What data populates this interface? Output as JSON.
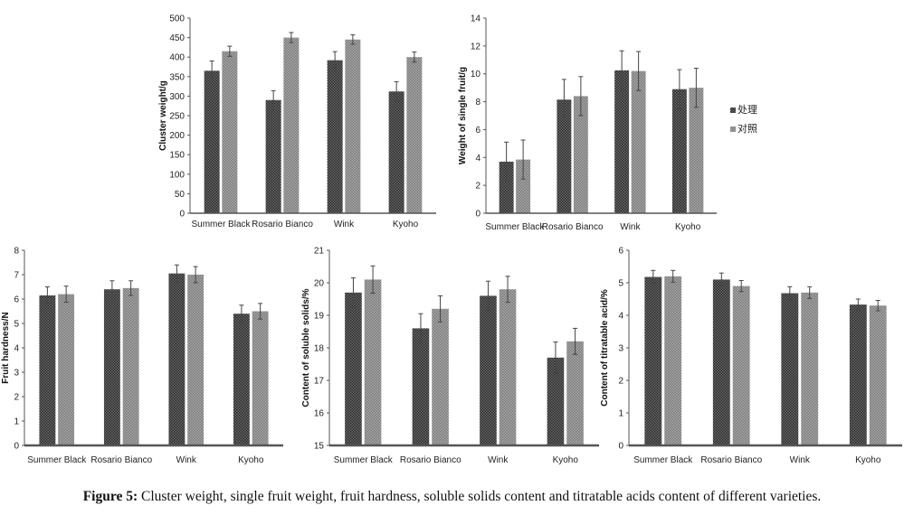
{
  "caption": {
    "label": "Figure 5:",
    "text": " Cluster weight, single fruit weight, fruit hardness, soluble solids content and titratable acids content of different varieties."
  },
  "legend": [
    "处理",
    "对照"
  ],
  "colors": {
    "treatment_pattern": "#3a3a3a",
    "control_pattern": "#8a8a8a",
    "axis": "#555555"
  },
  "chart_data": [
    {
      "type": "bar",
      "ylabel": "Cluster weight/g",
      "categories": [
        "Summer Black",
        "Rosario Bianco",
        "Wink",
        "Kyoho"
      ],
      "ylim": [
        0,
        500
      ],
      "yticks": [
        0,
        50,
        100,
        150,
        200,
        250,
        300,
        350,
        400,
        450,
        500
      ],
      "series": [
        {
          "name": "处理",
          "values": [
            365,
            290,
            392,
            312
          ],
          "errors": [
            25,
            24,
            22,
            25
          ]
        },
        {
          "name": "对照",
          "values": [
            415,
            450,
            445,
            400
          ],
          "errors": [
            13,
            13,
            12,
            13
          ]
        }
      ]
    },
    {
      "type": "bar",
      "ylabel": "Weight of single fruit/g",
      "categories": [
        "Summer Black",
        "Rosario Bianco",
        "Wink",
        "Kyoho"
      ],
      "ylim": [
        0,
        14
      ],
      "yticks": [
        0,
        2,
        4,
        6,
        8,
        10,
        12,
        14
      ],
      "legend_position": "right",
      "series": [
        {
          "name": "处理",
          "values": [
            3.7,
            8.15,
            10.25,
            8.9
          ],
          "errors": [
            1.4,
            1.45,
            1.4,
            1.4
          ]
        },
        {
          "name": "对照",
          "values": [
            3.85,
            8.4,
            10.2,
            9.0
          ],
          "errors": [
            1.4,
            1.4,
            1.4,
            1.4
          ]
        }
      ]
    },
    {
      "type": "bar",
      "ylabel": "Fruit hardness/N",
      "categories": [
        "Summer Black",
        "Rosario Bianco",
        "Wink",
        "Kyoho"
      ],
      "ylim": [
        0,
        8
      ],
      "yticks": [
        0,
        1,
        2,
        3,
        4,
        5,
        6,
        7,
        8
      ],
      "series": [
        {
          "name": "处理",
          "values": [
            6.15,
            6.4,
            7.05,
            5.4
          ],
          "errors": [
            0.35,
            0.35,
            0.35,
            0.35
          ]
        },
        {
          "name": "对照",
          "values": [
            6.2,
            6.45,
            7.0,
            5.5
          ],
          "errors": [
            0.33,
            0.3,
            0.33,
            0.32
          ]
        }
      ]
    },
    {
      "type": "bar",
      "ylabel": "Content of soluble solids/%",
      "categories": [
        "Summer Black",
        "Rosario Bianco",
        "Wink",
        "Kyoho"
      ],
      "ylim": [
        15,
        21
      ],
      "yticks": [
        15,
        16,
        17,
        18,
        19,
        20,
        21
      ],
      "series": [
        {
          "name": "处理",
          "values": [
            19.7,
            18.6,
            19.6,
            17.7
          ],
          "errors": [
            0.45,
            0.45,
            0.45,
            0.48
          ]
        },
        {
          "name": "对照",
          "values": [
            20.1,
            19.2,
            19.8,
            18.2
          ],
          "errors": [
            0.42,
            0.4,
            0.4,
            0.4
          ]
        }
      ]
    },
    {
      "type": "bar",
      "ylabel": "Content of titratable acid/%",
      "categories": [
        "Summer Black",
        "Rosario Bianco",
        "Wink",
        "Kyoho"
      ],
      "ylim": [
        0,
        6
      ],
      "yticks": [
        0,
        1,
        2,
        3,
        4,
        5,
        6
      ],
      "series": [
        {
          "name": "处理",
          "values": [
            5.18,
            5.1,
            4.68,
            4.33
          ],
          "errors": [
            0.2,
            0.2,
            0.2,
            0.17
          ]
        },
        {
          "name": "对照",
          "values": [
            5.2,
            4.9,
            4.7,
            4.3
          ],
          "errors": [
            0.18,
            0.17,
            0.18,
            0.16
          ]
        }
      ]
    }
  ]
}
